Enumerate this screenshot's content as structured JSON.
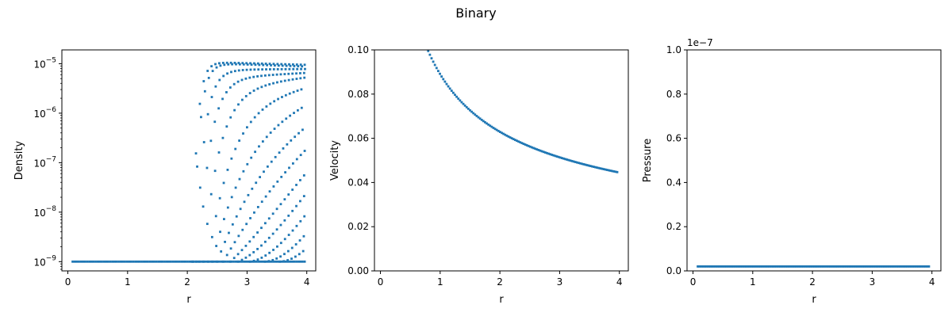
{
  "figure_title": "Binary",
  "colors": {
    "series": "#1f77b4",
    "axis": "#000000",
    "background": "#ffffff"
  },
  "chart_data": [
    {
      "type": "scatter",
      "title": "",
      "xlabel": "r",
      "ylabel": "Density",
      "yscale": "log",
      "xlim": [
        -0.1,
        4.15
      ],
      "ylim": [
        6.5e-10,
        1.9e-05
      ],
      "x_ticks": [
        0,
        1,
        2,
        3,
        4
      ],
      "x_tick_labels": [
        "0",
        "1",
        "2",
        "3",
        "4"
      ],
      "y_ticks": [
        1e-09,
        1e-08,
        1e-07,
        1e-06,
        1e-05
      ],
      "y_tick_labels": [
        "10",
        "10",
        "10",
        "10",
        "10"
      ],
      "y_tick_exponents": [
        "−9",
        "−8",
        "−7",
        "−6",
        "−5"
      ],
      "grid": false,
      "floor_value": 1e-09,
      "floor_x_range": [
        0.08,
        3.97
      ],
      "series": [
        {
          "onset": 2.08,
          "plateau": 1.1e-05,
          "end_value": 9.5e-06,
          "k": 12
        },
        {
          "onset": 2.1,
          "plateau": 1.05e-05,
          "end_value": 8.8e-06,
          "k": 10
        },
        {
          "onset": 2.15,
          "plateau": 7.5e-06,
          "end_value": 7.8e-06,
          "k": 7.5
        },
        {
          "onset": 2.2,
          "plateau": 5e-06,
          "end_value": 6.5e-06,
          "k": 5.5
        },
        {
          "onset": 2.27,
          "plateau": 3e-06,
          "end_value": 5.3e-06,
          "k": 3.8
        },
        {
          "onset": 2.35,
          "plateau": 1.5e-06,
          "end_value": 3.6e-06,
          "k": 2.6
        },
        {
          "onset": 2.42,
          "plateau": 5e-07,
          "end_value": 2.1e-06,
          "k": 1.9
        },
        {
          "onset": 2.5,
          "plateau": 1.5e-07,
          "end_value": 1.1e-06,
          "k": 1.5
        },
        {
          "onset": 2.6,
          "plateau": 4e-08,
          "end_value": 5e-07,
          "k": 1.3
        },
        {
          "onset": 2.72,
          "plateau": 1e-08,
          "end_value": 2.3e-07,
          "k": 1.1
        },
        {
          "onset": 2.85,
          "plateau": 3e-09,
          "end_value": 1e-07,
          "k": 1.0
        },
        {
          "onset": 3.05,
          "plateau": 1.5e-09,
          "end_value": 4.5e-08,
          "k": 0.9
        },
        {
          "onset": 3.3,
          "plateau": 1.2e-09,
          "end_value": 2e-08,
          "k": 0.8
        },
        {
          "onset": 3.55,
          "plateau": 1.1e-09,
          "end_value": 9e-09,
          "k": 0.7
        }
      ]
    },
    {
      "type": "scatter",
      "title": "",
      "xlabel": "r",
      "ylabel": "Velocity",
      "yscale": "linear",
      "xlim": [
        -0.1,
        4.15
      ],
      "ylim": [
        0.0,
        0.1
      ],
      "x_ticks": [
        0,
        1,
        2,
        3,
        4
      ],
      "x_tick_labels": [
        "0",
        "1",
        "2",
        "3",
        "4"
      ],
      "y_ticks": [
        0.0,
        0.02,
        0.04,
        0.06,
        0.08,
        0.1
      ],
      "y_tick_labels": [
        "0.00",
        "0.02",
        "0.04",
        "0.06",
        "0.08",
        "0.10"
      ],
      "grid": false,
      "curve": {
        "x_start": 0.8,
        "x_end": 3.97,
        "y_at_1": 0.089,
        "exponent": 0.5
      }
    },
    {
      "type": "scatter",
      "title": "",
      "xlabel": "r",
      "ylabel": "Pressure",
      "yscale": "linear",
      "xlim": [
        -0.1,
        4.15
      ],
      "ylim": [
        0.0,
        1.0
      ],
      "offset_text": "1e−7",
      "x_ticks": [
        0,
        1,
        2,
        3,
        4
      ],
      "x_tick_labels": [
        "0",
        "1",
        "2",
        "3",
        "4"
      ],
      "y_ticks": [
        0.0,
        0.2,
        0.4,
        0.6,
        0.8,
        1.0
      ],
      "y_tick_labels": [
        "0.0",
        "0.2",
        "0.4",
        "0.6",
        "0.8",
        "1.0"
      ],
      "grid": false,
      "flat_value": 0.02,
      "flat_x_range": [
        0.08,
        3.97
      ]
    }
  ]
}
